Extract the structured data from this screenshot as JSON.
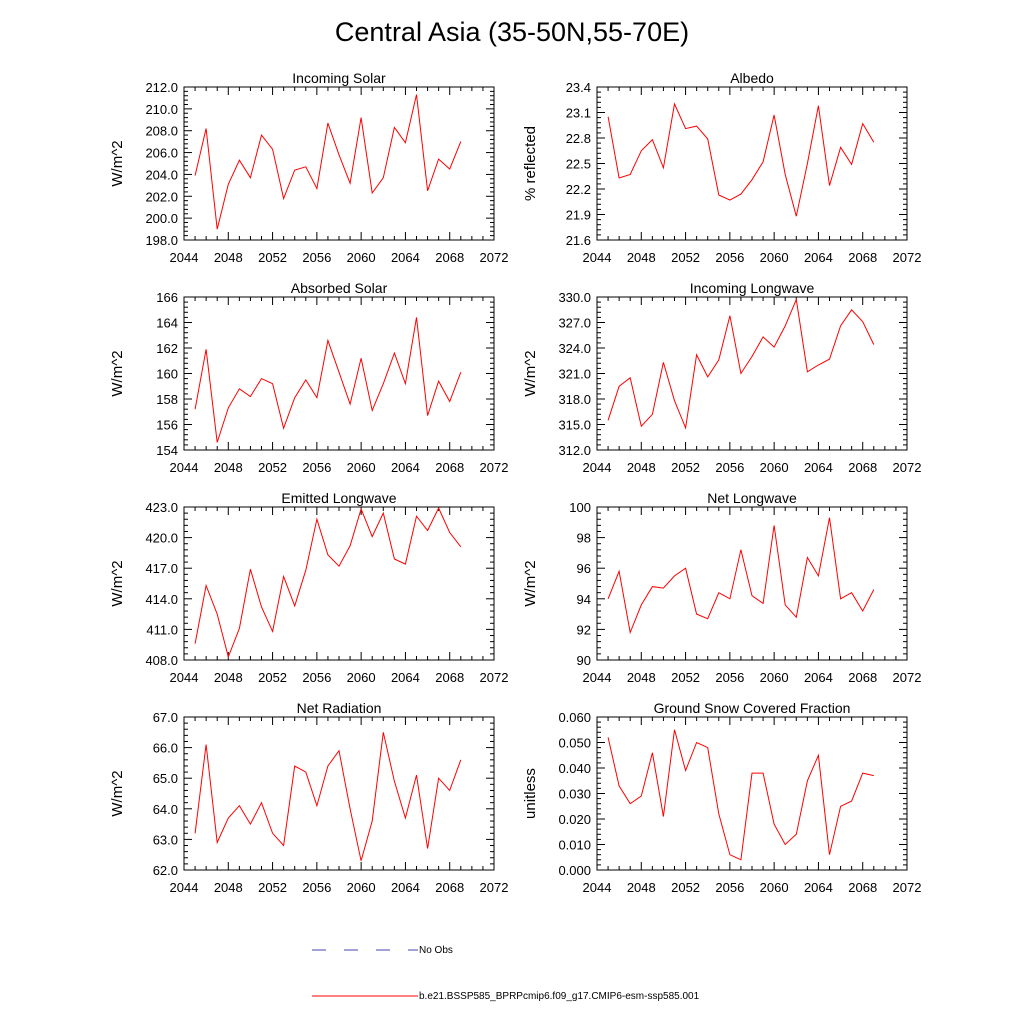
{
  "figure": {
    "title": "Central Asia (35-50N,55-70E)",
    "legend": [
      {
        "label": "No Obs",
        "color": "#4444aa",
        "dash": "dashed"
      },
      {
        "label": "b.e21.BSSP585_BPRPcmip6.f09_g17.CMIP6-esm-ssp585.001",
        "color": "#ff0000",
        "dash": "solid"
      }
    ]
  },
  "chart_data": [
    {
      "type": "line",
      "title": "Incoming Solar",
      "ylabel": "W/m^2",
      "xlim": [
        2044,
        2072
      ],
      "ylim": [
        198,
        212
      ],
      "x_ticks": [
        "2044",
        "2048",
        "2052",
        "2056",
        "2060",
        "2064",
        "2068",
        "2072"
      ],
      "y_ticks": [
        "198.0",
        "200.0",
        "202.0",
        "204.0",
        "206.0",
        "208.0",
        "210.0",
        "212.0"
      ],
      "x": [
        2045,
        2046,
        2047,
        2048,
        2049,
        2050,
        2051,
        2052,
        2053,
        2054,
        2055,
        2056,
        2057,
        2058,
        2059,
        2060,
        2061,
        2062,
        2063,
        2064,
        2065,
        2066,
        2067,
        2068,
        2069
      ],
      "series": [
        {
          "color": "#ff0000",
          "values": [
            203.9,
            208.2,
            199.0,
            203.1,
            205.3,
            203.7,
            207.6,
            206.3,
            201.8,
            204.4,
            204.7,
            202.7,
            208.7,
            205.8,
            203.2,
            209.2,
            202.3,
            203.7,
            208.3,
            206.9,
            211.3,
            202.5,
            205.4,
            204.5,
            207.0
          ]
        }
      ]
    },
    {
      "type": "line",
      "title": "Albedo",
      "ylabel": "% reflected",
      "xlim": [
        2044,
        2072
      ],
      "ylim": [
        21.6,
        23.4
      ],
      "x_ticks": [
        "2044",
        "2048",
        "2052",
        "2056",
        "2060",
        "2064",
        "2068",
        "2072"
      ],
      "y_ticks": [
        "21.6",
        "21.9",
        "22.2",
        "22.5",
        "22.8",
        "23.1",
        "23.4"
      ],
      "x": [
        2045,
        2046,
        2047,
        2048,
        2049,
        2050,
        2051,
        2052,
        2053,
        2054,
        2055,
        2056,
        2057,
        2058,
        2059,
        2060,
        2061,
        2062,
        2063,
        2064,
        2065,
        2066,
        2067,
        2068,
        2069
      ],
      "series": [
        {
          "color": "#ff0000",
          "values": [
            23.05,
            22.33,
            22.37,
            22.65,
            22.78,
            22.45,
            23.2,
            22.91,
            22.94,
            22.79,
            22.13,
            22.07,
            22.14,
            22.31,
            22.52,
            23.07,
            22.37,
            21.88,
            22.5,
            23.18,
            22.24,
            22.69,
            22.49,
            22.97,
            22.75
          ]
        }
      ]
    },
    {
      "type": "line",
      "title": "Absorbed Solar",
      "ylabel": "W/m^2",
      "xlim": [
        2044,
        2072
      ],
      "ylim": [
        154,
        166
      ],
      "x_ticks": [
        "2044",
        "2048",
        "2052",
        "2056",
        "2060",
        "2064",
        "2068",
        "2072"
      ],
      "y_ticks": [
        "154",
        "156",
        "158",
        "160",
        "162",
        "164",
        "166"
      ],
      "x": [
        2045,
        2046,
        2047,
        2048,
        2049,
        2050,
        2051,
        2052,
        2053,
        2054,
        2055,
        2056,
        2057,
        2058,
        2059,
        2060,
        2061,
        2062,
        2063,
        2064,
        2065,
        2066,
        2067,
        2068,
        2069
      ],
      "series": [
        {
          "color": "#ff0000",
          "values": [
            157.2,
            161.9,
            154.6,
            157.3,
            158.8,
            158.2,
            159.6,
            159.2,
            155.7,
            158.1,
            159.5,
            158.1,
            162.6,
            160.1,
            157.6,
            161.2,
            157.1,
            159.2,
            161.6,
            159.2,
            164.4,
            156.7,
            159.4,
            157.8,
            160.1
          ]
        }
      ]
    },
    {
      "type": "line",
      "title": "Incoming Longwave",
      "ylabel": "W/m^2",
      "xlim": [
        2044,
        2072
      ],
      "ylim": [
        312,
        330
      ],
      "x_ticks": [
        "2044",
        "2048",
        "2052",
        "2056",
        "2060",
        "2064",
        "2068",
        "2072"
      ],
      "y_ticks": [
        "312.0",
        "315.0",
        "318.0",
        "321.0",
        "324.0",
        "327.0",
        "330.0"
      ],
      "x": [
        2045,
        2046,
        2047,
        2048,
        2049,
        2050,
        2051,
        2052,
        2053,
        2054,
        2055,
        2056,
        2057,
        2058,
        2059,
        2060,
        2061,
        2062,
        2063,
        2064,
        2065,
        2066,
        2067,
        2068,
        2069
      ],
      "series": [
        {
          "color": "#ff0000",
          "values": [
            315.5,
            319.5,
            320.5,
            314.8,
            316.2,
            322.3,
            317.8,
            314.6,
            323.2,
            320.6,
            322.6,
            327.8,
            321.0,
            323.0,
            325.3,
            324.1,
            326.6,
            329.7,
            321.2,
            322.0,
            322.7,
            326.6,
            328.5,
            327.1,
            324.4
          ]
        }
      ]
    },
    {
      "type": "line",
      "title": "Emitted Longwave",
      "ylabel": "W/m^2",
      "xlim": [
        2044,
        2072
      ],
      "ylim": [
        408,
        423
      ],
      "x_ticks": [
        "2044",
        "2048",
        "2052",
        "2056",
        "2060",
        "2064",
        "2068",
        "2072"
      ],
      "y_ticks": [
        "408.0",
        "411.0",
        "414.0",
        "417.0",
        "420.0",
        "423.0"
      ],
      "x": [
        2045,
        2046,
        2047,
        2048,
        2049,
        2050,
        2051,
        2052,
        2053,
        2054,
        2055,
        2056,
        2057,
        2058,
        2059,
        2060,
        2061,
        2062,
        2063,
        2064,
        2065,
        2066,
        2067,
        2068,
        2069
      ],
      "series": [
        {
          "color": "#ff0000",
          "values": [
            409.6,
            415.3,
            412.5,
            408.3,
            411.1,
            416.9,
            413.2,
            410.8,
            416.2,
            413.3,
            416.8,
            421.8,
            418.3,
            417.2,
            419.2,
            422.8,
            420.1,
            422.4,
            417.9,
            417.4,
            422.1,
            420.7,
            422.9,
            420.5,
            419.1
          ]
        }
      ]
    },
    {
      "type": "line",
      "title": "Net Longwave",
      "ylabel": "W/m^2",
      "xlim": [
        2044,
        2072
      ],
      "ylim": [
        90,
        100
      ],
      "x_ticks": [
        "2044",
        "2048",
        "2052",
        "2056",
        "2060",
        "2064",
        "2068",
        "2072"
      ],
      "y_ticks": [
        "90",
        "92",
        "94",
        "96",
        "98",
        "100"
      ],
      "x": [
        2045,
        2046,
        2047,
        2048,
        2049,
        2050,
        2051,
        2052,
        2053,
        2054,
        2055,
        2056,
        2057,
        2058,
        2059,
        2060,
        2061,
        2062,
        2063,
        2064,
        2065,
        2066,
        2067,
        2068,
        2069
      ],
      "series": [
        {
          "color": "#ff0000",
          "values": [
            94.0,
            95.8,
            91.8,
            93.6,
            94.8,
            94.7,
            95.5,
            96.0,
            93.0,
            92.7,
            94.4,
            94.0,
            97.2,
            94.2,
            93.7,
            98.8,
            93.6,
            92.8,
            96.7,
            95.5,
            99.3,
            94.0,
            94.4,
            93.2,
            94.6
          ]
        }
      ]
    },
    {
      "type": "line",
      "title": "Net Radiation",
      "ylabel": "W/m^2",
      "xlim": [
        2044,
        2072
      ],
      "ylim": [
        62,
        67
      ],
      "x_ticks": [
        "2044",
        "2048",
        "2052",
        "2056",
        "2060",
        "2064",
        "2068",
        "2072"
      ],
      "y_ticks": [
        "62.0",
        "63.0",
        "64.0",
        "65.0",
        "66.0",
        "67.0"
      ],
      "x": [
        2045,
        2046,
        2047,
        2048,
        2049,
        2050,
        2051,
        2052,
        2053,
        2054,
        2055,
        2056,
        2057,
        2058,
        2059,
        2060,
        2061,
        2062,
        2063,
        2064,
        2065,
        2066,
        2067,
        2068,
        2069
      ],
      "series": [
        {
          "color": "#ff0000",
          "values": [
            63.2,
            66.1,
            62.9,
            63.7,
            64.1,
            63.5,
            64.2,
            63.2,
            62.8,
            65.4,
            65.2,
            64.1,
            65.4,
            65.9,
            64.0,
            62.3,
            63.6,
            66.5,
            64.9,
            63.7,
            65.1,
            62.7,
            65.0,
            64.6,
            65.6
          ]
        }
      ]
    },
    {
      "type": "line",
      "title": "Ground Snow Covered Fraction",
      "ylabel": "unitless",
      "xlim": [
        2044,
        2072
      ],
      "ylim": [
        0,
        0.06
      ],
      "x_ticks": [
        "2044",
        "2048",
        "2052",
        "2056",
        "2060",
        "2064",
        "2068",
        "2072"
      ],
      "y_ticks": [
        "0.000",
        "0.010",
        "0.020",
        "0.030",
        "0.040",
        "0.050",
        "0.060"
      ],
      "x": [
        2045,
        2046,
        2047,
        2048,
        2049,
        2050,
        2051,
        2052,
        2053,
        2054,
        2055,
        2056,
        2057,
        2058,
        2059,
        2060,
        2061,
        2062,
        2063,
        2064,
        2065,
        2066,
        2067,
        2068,
        2069
      ],
      "series": [
        {
          "color": "#ff0000",
          "values": [
            0.052,
            0.033,
            0.026,
            0.029,
            0.046,
            0.021,
            0.055,
            0.039,
            0.05,
            0.048,
            0.022,
            0.006,
            0.004,
            0.038,
            0.038,
            0.018,
            0.01,
            0.014,
            0.035,
            0.045,
            0.006,
            0.025,
            0.027,
            0.038,
            0.037
          ]
        }
      ]
    }
  ]
}
